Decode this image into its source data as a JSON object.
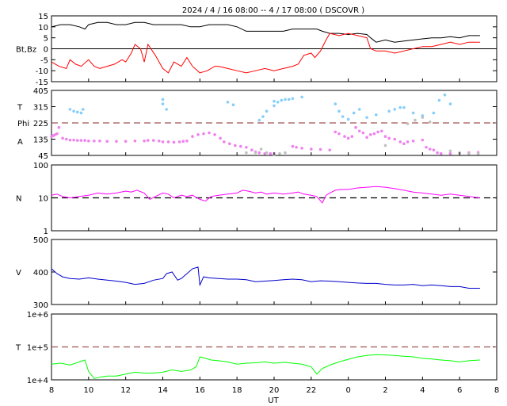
{
  "title": "2024  /  4 / 16   08:00  --  4 / 17   08:00 ( DSCOVR )",
  "colors": {
    "bt": "#000000",
    "bz": "#ff0000",
    "theta": "#87cefa",
    "phi": "#ee82ee",
    "phi_gray": "#c0c0c0",
    "density": "#ff00ff",
    "speed": "#0000cc",
    "temperature": "#00ff00",
    "ref_dash": "#a05050",
    "zero_line": "#000000"
  },
  "chart_data": [
    {
      "type": "line",
      "panel": "magnetic-field",
      "ylabel": "Bt,Bz",
      "ylim": [
        -15,
        15
      ],
      "yticks": [
        "15",
        "10",
        "5",
        "0",
        "-5",
        "-10",
        "-15"
      ],
      "series": [
        {
          "name": "Bt",
          "x": [
            8,
            8.5,
            9,
            9.5,
            9.8,
            10,
            10.5,
            11,
            11.5,
            12,
            12.5,
            13,
            13.5,
            14,
            14.5,
            15,
            15.5,
            16,
            16.5,
            17,
            17.5,
            18,
            18.5,
            19,
            19.5,
            20,
            20.5,
            21,
            21.5,
            22,
            22.3,
            22.6,
            23,
            23.5,
            24,
            24.5,
            25,
            25.2,
            25.5,
            26,
            26.5,
            27,
            27.5,
            28,
            28.5,
            29,
            29.5,
            30,
            30.5,
            31.1
          ],
          "y": [
            10,
            11,
            11,
            10,
            9,
            11,
            12,
            12,
            11,
            11,
            12,
            12,
            11,
            11,
            11,
            11,
            10,
            10,
            11,
            11,
            11,
            10,
            8,
            8,
            8,
            8,
            8,
            9,
            9,
            9,
            9,
            8,
            7,
            7,
            6.5,
            7,
            6.5,
            5,
            3,
            4,
            3,
            3.5,
            4,
            4.5,
            5,
            5,
            5.5,
            5,
            6,
            6
          ]
        },
        {
          "name": "Bz",
          "x": [
            8,
            8.4,
            8.8,
            9,
            9.3,
            9.6,
            10,
            10.3,
            10.6,
            11,
            11.4,
            11.8,
            12,
            12.3,
            12.5,
            12.8,
            13,
            13.2,
            13.6,
            14,
            14.3,
            14.6,
            15,
            15.3,
            15.6,
            16,
            16.4,
            16.8,
            17,
            17.5,
            18,
            18.5,
            19,
            19.5,
            20,
            20.5,
            21,
            21.3,
            21.6,
            22,
            22.2,
            22.5,
            22.8,
            23,
            23.5,
            24,
            24.5,
            25,
            25.2,
            25.5,
            26,
            26.5,
            27,
            27.5,
            28,
            28.5,
            29,
            29.5,
            30,
            30.5,
            31.1
          ],
          "y": [
            -6,
            -8,
            -9,
            -5,
            -7,
            -8,
            -5,
            -8,
            -9,
            -8,
            -7,
            -5,
            -6,
            -2,
            2,
            0,
            -6,
            2,
            -3,
            -9,
            -11,
            -6,
            -8,
            -4,
            -8,
            -11,
            -10,
            -8,
            -8,
            -9,
            -10,
            -11,
            -10,
            -9,
            -10,
            -9,
            -8,
            -7,
            -3,
            -2,
            -4,
            -1,
            4,
            7,
            6,
            7,
            6,
            5,
            0,
            -1,
            -1,
            -2,
            -1,
            0,
            1,
            1,
            2,
            3,
            2,
            3,
            3
          ]
        }
      ]
    },
    {
      "type": "scatter",
      "panel": "angles",
      "ylabel_lines": [
        "T",
        "Phi",
        "A"
      ],
      "ylim": [
        45,
        405
      ],
      "yticks": [
        "405",
        "315",
        "225",
        "135",
        "45"
      ],
      "reference_line": 225,
      "series": [
        {
          "name": "Theta",
          "x": [
            9,
            9.2,
            9.4,
            9.6,
            9.7,
            14,
            14,
            14.2,
            17.5,
            17.8,
            19.2,
            19.4,
            19.6,
            20,
            20,
            20.2,
            20.4,
            20.6,
            20.8,
            21,
            21.5,
            23.3,
            23.5,
            23.7,
            24,
            24.3,
            24.6,
            25,
            25.5,
            26.2,
            26.5,
            26.8,
            27,
            27.5,
            28,
            28.6,
            28.9,
            29.2,
            29.5
          ],
          "y": [
            300,
            290,
            285,
            280,
            300,
            330,
            355,
            300,
            340,
            325,
            240,
            260,
            290,
            320,
            345,
            340,
            350,
            355,
            355,
            360,
            368,
            330,
            290,
            260,
            245,
            280,
            300,
            255,
            270,
            290,
            300,
            310,
            310,
            280,
            265,
            280,
            350,
            380,
            330
          ]
        },
        {
          "name": "Phi",
          "x": [
            8,
            8.1,
            8.2,
            8.3,
            8.4,
            8.6,
            8.8,
            9,
            9.2,
            9.4,
            9.6,
            9.8,
            10,
            10.3,
            10.6,
            11,
            11.5,
            12,
            12.5,
            13,
            13.2,
            13.5,
            13.8,
            14,
            14.3,
            14.6,
            14.9,
            15.1,
            15.3,
            15.6,
            15.9,
            16.2,
            16.5,
            16.8,
            17.1,
            17.3,
            17.6,
            17.9,
            18.2,
            18.5,
            18.8,
            19,
            19.2,
            19.5,
            19.8,
            20,
            21,
            21.2,
            21.5,
            22,
            22.5,
            23,
            23.3,
            23.5,
            23.8,
            24,
            24.2,
            24.4,
            24.6,
            24.8,
            25,
            25.2,
            25.4,
            25.6,
            25.8,
            26,
            26.2,
            26.5,
            26.8,
            27,
            27.2,
            27.5,
            28,
            28.2,
            28.4,
            28.6,
            28.8,
            29,
            29.5,
            30,
            30.5,
            31
          ],
          "y": [
            150,
            155,
            160,
            165,
            200,
            140,
            135,
            130,
            130,
            128,
            128,
            128,
            125,
            125,
            125,
            123,
            123,
            123,
            125,
            125,
            128,
            128,
            125,
            120,
            120,
            118,
            120,
            123,
            125,
            150,
            160,
            165,
            170,
            160,
            140,
            120,
            110,
            100,
            95,
            90,
            75,
            65,
            60,
            55,
            55,
            55,
            95,
            90,
            85,
            80,
            78,
            75,
            175,
            165,
            150,
            140,
            150,
            200,
            180,
            170,
            145,
            160,
            165,
            175,
            180,
            150,
            140,
            135,
            120,
            110,
            120,
            125,
            130,
            90,
            80,
            75,
            60,
            55,
            55,
            58,
            60,
            62
          ]
        },
        {
          "name": "Phi (gray)",
          "x": [
            18.5,
            19,
            19.3,
            19.6,
            20,
            20.3,
            20.6,
            26,
            27.2,
            27.6,
            28,
            28.4,
            29.5,
            30,
            30.5,
            31
          ],
          "y": [
            60,
            60,
            80,
            60,
            50,
            55,
            60,
            100,
            220,
            240,
            255,
            230,
            70,
            60,
            55,
            55
          ]
        }
      ]
    },
    {
      "type": "line",
      "panel": "density",
      "ylabel": "N",
      "log_scale": true,
      "ylim": [
        1,
        100
      ],
      "yticks": [
        "100",
        "10",
        "1"
      ],
      "reference_line": 10,
      "series": [
        {
          "name": "N",
          "x": [
            8,
            8.3,
            8.6,
            9,
            9.5,
            10,
            10.5,
            11,
            11.5,
            12,
            12.3,
            12.6,
            13,
            13.3,
            13.6,
            14,
            14.3,
            14.6,
            15,
            15.3,
            15.6,
            16,
            16.3,
            16.6,
            17,
            17.5,
            18,
            18.3,
            18.6,
            19,
            19.3,
            19.6,
            20,
            20.5,
            21,
            21.3,
            21.6,
            22,
            22.3,
            22.6,
            22.8,
            23,
            23.3,
            23.6,
            24,
            24.5,
            25,
            25.5,
            26,
            26.5,
            27,
            27.5,
            28,
            28.5,
            29,
            29.5,
            30,
            30.5,
            31.1
          ],
          "y": [
            12,
            13,
            11,
            10,
            11,
            12,
            14,
            13,
            14,
            16,
            15,
            17,
            14,
            9,
            11,
            14,
            13,
            10,
            12,
            11,
            12,
            9,
            8,
            11,
            12,
            13,
            14,
            17,
            16,
            14,
            15,
            13,
            14,
            13,
            14,
            15,
            13,
            12,
            11,
            7,
            12,
            14,
            17,
            18,
            18,
            20,
            21,
            22,
            21,
            19,
            17,
            15,
            14,
            13,
            12,
            13,
            12,
            11,
            10
          ]
        }
      ]
    },
    {
      "type": "line",
      "panel": "speed",
      "ylabel": "V",
      "ylim": [
        300,
        500
      ],
      "yticks": [
        "500",
        "400",
        "300"
      ],
      "series": [
        {
          "name": "V",
          "x": [
            8,
            8.3,
            8.6,
            9,
            9.5,
            10,
            10.5,
            11,
            11.5,
            12,
            12.5,
            13,
            13.5,
            14,
            14.2,
            14.5,
            14.8,
            15,
            15.3,
            15.6,
            15.9,
            16,
            16.2,
            16.5,
            17,
            17.5,
            18,
            18.5,
            19,
            19.5,
            20,
            20.5,
            21,
            21.5,
            22,
            22.5,
            23,
            23.5,
            24,
            24.5,
            25,
            25.5,
            26,
            26.5,
            27,
            27.5,
            28,
            28.5,
            29,
            29.5,
            30,
            30.5,
            31.1
          ],
          "y": [
            410,
            395,
            385,
            380,
            378,
            382,
            378,
            375,
            372,
            368,
            362,
            365,
            375,
            380,
            395,
            400,
            375,
            380,
            395,
            410,
            415,
            360,
            385,
            382,
            380,
            378,
            378,
            376,
            370,
            372,
            374,
            376,
            378,
            376,
            370,
            373,
            372,
            370,
            368,
            366,
            365,
            365,
            362,
            360,
            360,
            362,
            358,
            360,
            358,
            355,
            355,
            350,
            350
          ]
        }
      ]
    },
    {
      "type": "line",
      "panel": "temperature",
      "ylabel": "T",
      "log_scale": true,
      "ylim": [
        10000,
        1000000
      ],
      "yticks": [
        "1e+6",
        "1e+5",
        "1e+4"
      ],
      "reference_line": 100000,
      "series": [
        {
          "name": "T",
          "x": [
            8,
            8.5,
            9,
            9.5,
            9.8,
            10,
            10.3,
            10.6,
            11,
            11.5,
            12,
            12.5,
            13,
            13.5,
            14,
            14.5,
            15,
            15.5,
            15.8,
            16,
            16.3,
            16.6,
            17,
            17.5,
            18,
            18.5,
            19,
            19.5,
            20,
            20.5,
            21,
            21.5,
            22,
            22.3,
            22.6,
            23,
            23.5,
            24,
            24.5,
            25,
            25.5,
            26,
            26.5,
            27,
            27.5,
            28,
            28.5,
            29,
            29.5,
            30,
            30.5,
            31.1
          ],
          "y": [
            30000,
            32000,
            28000,
            35000,
            40000,
            18000,
            11000,
            12000,
            13000,
            13000,
            15000,
            17000,
            16000,
            16000,
            17000,
            20000,
            18000,
            20000,
            25000,
            50000,
            45000,
            40000,
            38000,
            35000,
            30000,
            32000,
            33000,
            35000,
            32000,
            34000,
            32000,
            30000,
            25000,
            15000,
            22000,
            28000,
            35000,
            42000,
            50000,
            55000,
            58000,
            57000,
            55000,
            52000,
            50000,
            45000,
            43000,
            40000,
            38000,
            35000,
            38000,
            40000
          ]
        }
      ]
    }
  ],
  "x_axis": {
    "label": "UT",
    "ticks": [
      "8",
      "10",
      "12",
      "14",
      "16",
      "18",
      "20",
      "22",
      "0",
      "2",
      "4",
      "6",
      "8"
    ]
  }
}
